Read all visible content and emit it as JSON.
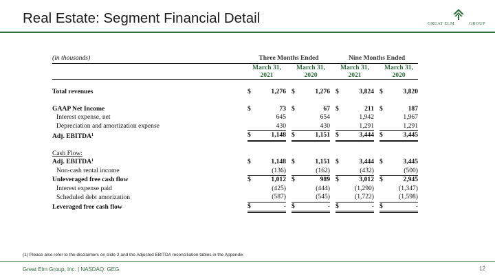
{
  "slide": {
    "title": "Real Estate: Segment Financial Detail",
    "footnote": "(1) Please also refer to the disclaimers on slide 2 and the Adjusted EBITDA reconciliation tables in the Appendix",
    "footer": "Great Elm Group, Inc. | NASDAQ: GEG",
    "page_number": "12"
  },
  "logo": {
    "words": [
      "GREAT",
      "ELM",
      "GROUP"
    ],
    "color": "#2e6e3c"
  },
  "table": {
    "units_label": "(in thousands)",
    "group_headers": [
      "Three Months Ended",
      "Nine Months Ended"
    ],
    "periods": [
      {
        "line1": "March 31,",
        "line2": "2021"
      },
      {
        "line1": "March 31,",
        "line2": "2020"
      },
      {
        "line1": "March 31,",
        "line2": "2021"
      },
      {
        "line1": "March 31,",
        "line2": "2020"
      }
    ],
    "rows": {
      "total_revenues": {
        "label": "Total revenues",
        "dollar": "$",
        "values": [
          "1,276",
          "1,276",
          "3,824",
          "3,820"
        ]
      },
      "gaap_net_income": {
        "label": "GAAP Net Income",
        "dollar": "$",
        "values": [
          "73",
          "67",
          "211",
          "187"
        ]
      },
      "interest_expense_net": {
        "label": "Interest expense, net",
        "values": [
          "645",
          "654",
          "1,942",
          "1,967"
        ]
      },
      "dep_amort": {
        "label": "Depreciation and amortization expense",
        "values": [
          "430",
          "430",
          "1,291",
          "1,291"
        ]
      },
      "adj_ebitda": {
        "label": "Adj. EBITDA",
        "sup": "1",
        "dollar": "$",
        "values": [
          "1,148",
          "1,151",
          "3,444",
          "3,445"
        ]
      },
      "cash_flow_header": {
        "label": "Cash Flow:"
      },
      "adj_ebitda_cf": {
        "label": "Adj. EBITDA",
        "sup": "1",
        "dollar": "$",
        "values": [
          "1,148",
          "1,151",
          "3,444",
          "3,445"
        ]
      },
      "non_cash_rental": {
        "label": "Non-cash rental income",
        "values": [
          "(136)",
          "(162)",
          "(432)",
          "(500)"
        ]
      },
      "unlevered_fcf": {
        "label": "Unleveraged free cash flow",
        "dollar": "$",
        "values": [
          "1,012",
          "989",
          "3,012",
          "2,945"
        ]
      },
      "interest_paid": {
        "label": "Interest expense paid",
        "values": [
          "(425)",
          "(444)",
          "(1,290)",
          "(1,347)"
        ]
      },
      "debt_amort": {
        "label": "Scheduled debt amorization",
        "values": [
          "(587)",
          "(545)",
          "(1,722)",
          "(1,598)"
        ]
      },
      "levered_fcf": {
        "label": "Leveraged free cash flow",
        "dollar": "$",
        "values": [
          "-",
          "-",
          "-",
          "-"
        ]
      }
    }
  }
}
